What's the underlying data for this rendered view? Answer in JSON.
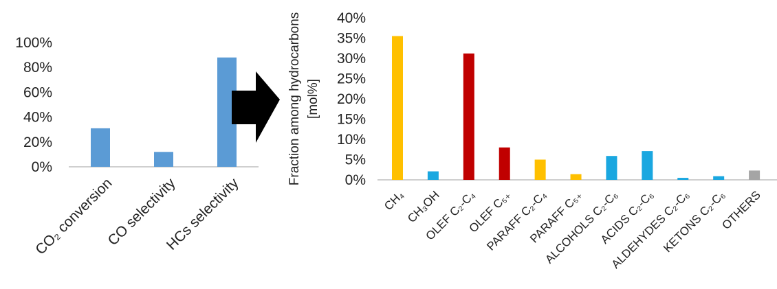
{
  "colors": {
    "blue": "#5b9bd5",
    "orange": "#ffc000",
    "red": "#c00000",
    "cyan": "#1aa7e0",
    "gray": "#a5a5a5",
    "arrow": "#000000"
  },
  "chart_data": [
    {
      "type": "bar",
      "categories": [
        "CO₂ conversion",
        "CO selectivity",
        "HCs selectivity"
      ],
      "values": [
        31,
        12,
        88
      ],
      "bar_color": "blue",
      "yticks": [
        "0%",
        "20%",
        "40%",
        "60%",
        "80%",
        "100%"
      ],
      "ylim": [
        0,
        100
      ],
      "grid": false,
      "title": "",
      "xlabel": "",
      "ylabel": ""
    },
    {
      "type": "bar",
      "categories": [
        "CH₄",
        "CH₃OH",
        "OLEF C₂-C₄",
        "OLEF C₅₊",
        "PARAFF C₂-C₄",
        "PARAFF C₅₊",
        "ALCOHOLS C₂-C₆",
        "ACIDS C₂-C₆",
        "ALDEHYDES C₂-C₆",
        "KETONS C₂-C₆",
        "OTHERS"
      ],
      "values": [
        35.5,
        2.1,
        31.2,
        8.0,
        5.0,
        1.4,
        5.9,
        7.1,
        0.5,
        0.9,
        2.3
      ],
      "bar_colors": [
        "orange",
        "cyan",
        "red",
        "red",
        "orange",
        "orange",
        "cyan",
        "cyan",
        "cyan",
        "cyan",
        "gray"
      ],
      "yticks": [
        "0%",
        "5%",
        "10%",
        "15%",
        "20%",
        "25%",
        "30%",
        "35%",
        "40%"
      ],
      "ylim": [
        0,
        40
      ],
      "grid": false,
      "title": "",
      "xlabel": "",
      "ylabel_lines": [
        "Fraction among hydrocarbons",
        "[mol%]"
      ]
    }
  ]
}
